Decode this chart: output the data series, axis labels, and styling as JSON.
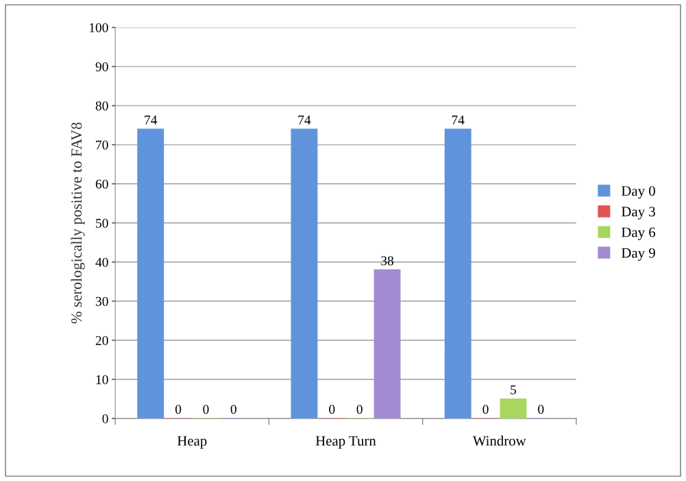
{
  "chart_data": {
    "type": "bar",
    "ylabel": "% serologically positive to FAV8",
    "categories": [
      "Heap",
      "Heap Turn",
      "Windrow"
    ],
    "series": [
      {
        "name": "Day 0",
        "color": "#5f93dc",
        "values": [
          74,
          74,
          74
        ]
      },
      {
        "name": "Day 3",
        "color": "#e05555",
        "values": [
          0,
          0,
          0
        ]
      },
      {
        "name": "Day 6",
        "color": "#a9d65e",
        "values": [
          0,
          0,
          5
        ]
      },
      {
        "name": "Day 9",
        "color": "#a48ad0",
        "values": [
          0,
          38,
          0
        ]
      }
    ],
    "ylim": [
      0,
      100
    ],
    "yticks": [
      0,
      10,
      20,
      30,
      40,
      50,
      60,
      70,
      80,
      90,
      100
    ],
    "grid": "y",
    "legend": "right",
    "data_labels": true
  }
}
